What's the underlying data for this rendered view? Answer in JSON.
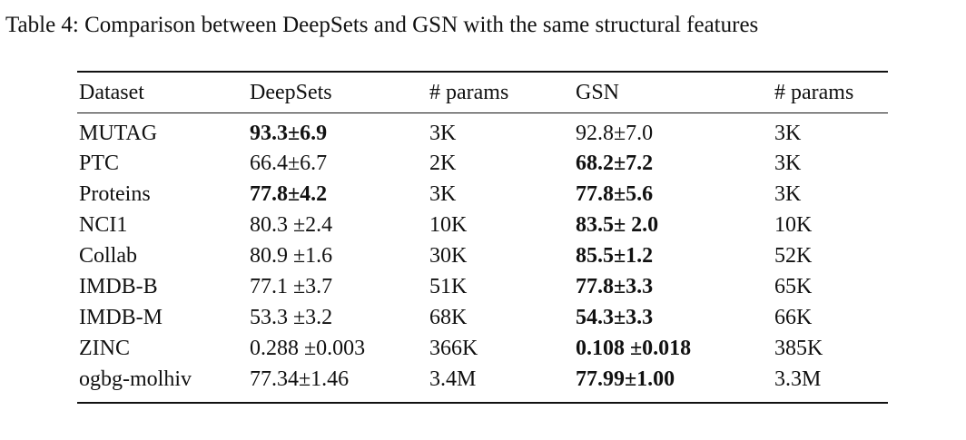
{
  "caption": "Table 4: Comparison between DeepSets and GSN with the same structural features",
  "table": {
    "header": [
      "Dataset",
      "DeepSets",
      "# params",
      "GSN",
      "# params"
    ],
    "rows": [
      [
        "MUTAG",
        "93.3±6.9",
        "3K",
        "92.8±7.0",
        "3K"
      ],
      [
        "PTC",
        "66.4±6.7",
        "2K",
        "68.2±7.2",
        "3K"
      ],
      [
        "Proteins",
        "77.8±4.2",
        "3K",
        "77.8±5.6",
        "3K"
      ],
      [
        "NCI1",
        "80.3 ±2.4",
        "10K",
        "83.5± 2.0",
        "10K"
      ],
      [
        "Collab",
        "80.9 ±1.6",
        "30K",
        "85.5±1.2",
        "52K"
      ],
      [
        "IMDB-B",
        "77.1 ±3.7",
        "51K",
        "77.8±3.3",
        "65K"
      ],
      [
        "IMDB-M",
        "53.3 ±3.2",
        "68K",
        "54.3±3.3",
        "66K"
      ],
      [
        "ZINC",
        "0.288 ±0.003",
        "366K",
        "0.108 ±0.018",
        "385K"
      ],
      [
        "ogbg-molhiv",
        "77.34±1.46",
        "3.4M",
        "77.99±1.00",
        "3.3M"
      ]
    ]
  }
}
